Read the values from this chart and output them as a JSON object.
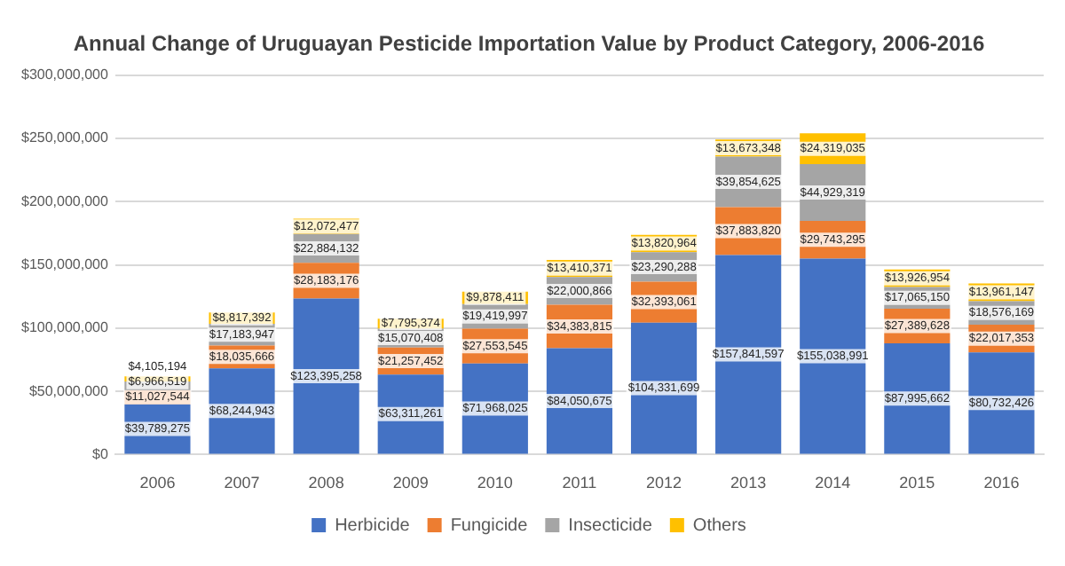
{
  "chart_data": {
    "type": "bar",
    "stacked": true,
    "title": "Annual Change of Uruguayan Pesticide Importation Value by Product Category, 2006-2016",
    "categories": [
      "2006",
      "2007",
      "2008",
      "2009",
      "2010",
      "2011",
      "2012",
      "2013",
      "2014",
      "2015",
      "2016"
    ],
    "series": [
      {
        "name": "Herbicide",
        "color": "#4472c4",
        "values": [
          39789275,
          68244943,
          123395258,
          63311261,
          71968025,
          84050675,
          104331699,
          157841597,
          155038991,
          87995662,
          80732426
        ],
        "value_labels": [
          "$39,789,275",
          "$68,244,943",
          "$123,395,258",
          "$63,311,261",
          "$71,968,025",
          "$84,050,675",
          "$104,331,699",
          "$157,841,597",
          "$155,038,991",
          "$87,995,662",
          "$80,732,426"
        ]
      },
      {
        "name": "Fungicide",
        "color": "#ed7d31",
        "values": [
          11027544,
          18035666,
          28183176,
          21257452,
          27553545,
          34383815,
          32393061,
          37883820,
          29743295,
          27389628,
          22017353
        ],
        "value_labels": [
          "$11,027,544",
          "$18,035,666",
          "$28,183,176",
          "$21,257,452",
          "$27,553,545",
          "$34,383,815",
          "$32,393,061",
          "$37,883,820",
          "$29,743,295",
          "$27,389,628",
          "$22,017,353"
        ]
      },
      {
        "name": "Insecticide",
        "color": "#a5a5a5",
        "values": [
          6966519,
          17183947,
          22884132,
          15070408,
          19419997,
          22000866,
          23290288,
          39854625,
          44929319,
          17065150,
          18576169
        ],
        "value_labels": [
          "$6,966,519",
          "$17,183,947",
          "$22,884,132",
          "$15,070,408",
          "$19,419,997",
          "$22,000,866",
          "$23,290,288",
          "$39,854,625",
          "$44,929,319",
          "$17,065,150",
          "$18,576,169"
        ]
      },
      {
        "name": "Others",
        "color": "#ffc000",
        "values": [
          4105194,
          8817392,
          12072477,
          7795374,
          9878411,
          13410371,
          13820964,
          13673348,
          24319035,
          13926954,
          13961147
        ],
        "value_labels": [
          "$4,105,194",
          "$8,817,392",
          "$12,072,477",
          "$7,795,374",
          "$9,878,411",
          "$13,410,371",
          "$13,820,964",
          "$13,673,348",
          "$24,319,035",
          "$13,926,954",
          "$13,961,147"
        ]
      }
    ],
    "ylim": [
      0,
      300000000
    ],
    "yticks": [
      {
        "value": 0,
        "label": "$0"
      },
      {
        "value": 50000000,
        "label": "$50,000,000"
      },
      {
        "value": 100000000,
        "label": "$100,000,000"
      },
      {
        "value": 150000000,
        "label": "$150,000,000"
      },
      {
        "value": 200000000,
        "label": "$200,000,000"
      },
      {
        "value": 250000000,
        "label": "$250,000,000"
      },
      {
        "value": 300000000,
        "label": "$300,000,000"
      }
    ],
    "grid": "y",
    "legend": "bottom"
  }
}
